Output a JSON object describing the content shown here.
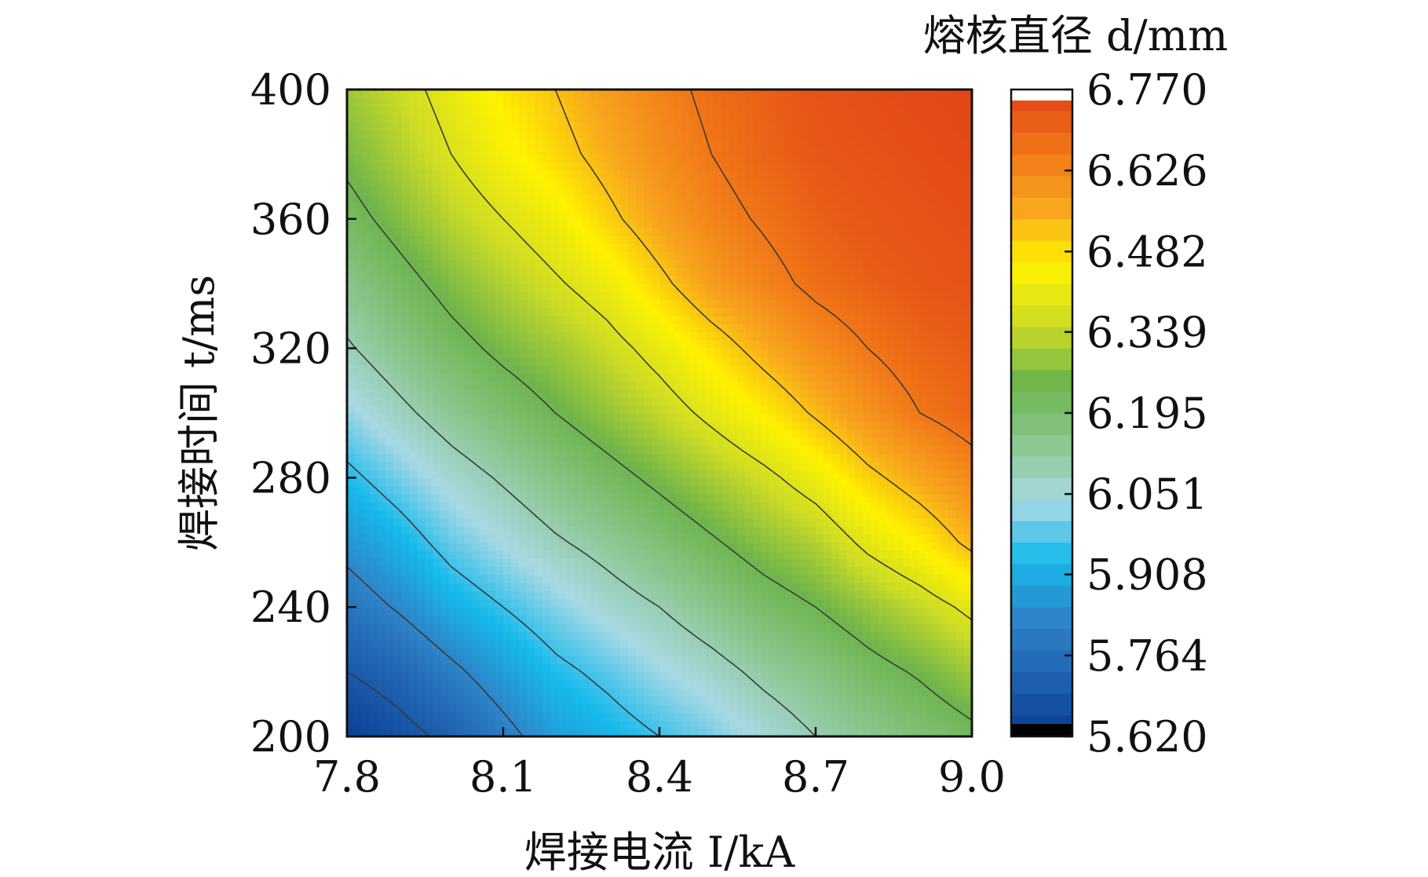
{
  "chart_data": {
    "type": "heatmap",
    "title": "",
    "xlabel": "焊接电流 I/kA",
    "ylabel": "焊接时间 t/ms",
    "xlim": [
      7.8,
      9.0
    ],
    "ylim": [
      200,
      400
    ],
    "x_ticks": [
      "7.8",
      "8.1",
      "8.4",
      "8.7",
      "9.0"
    ],
    "y_ticks": [
      "200",
      "240",
      "280",
      "320",
      "360",
      "400"
    ],
    "colorbar": {
      "title": "熔核直径 d/mm",
      "range": [
        5.62,
        6.77
      ],
      "tick_labels": [
        "6.770",
        "6.626",
        "6.482",
        "6.339",
        "6.195",
        "6.051",
        "5.908",
        "5.764",
        "5.620"
      ],
      "tick_values": [
        6.77,
        6.626,
        6.482,
        6.339,
        6.195,
        6.051,
        5.908,
        5.764,
        5.62
      ],
      "colors": [
        "#0a3f94",
        "#1f62b0",
        "#2f84c8",
        "#16b9ec",
        "#a9d9e4",
        "#8bc68e",
        "#6db44c",
        "#cddc25",
        "#fff200",
        "#f8a51e",
        "#f07417",
        "#e24617"
      ]
    },
    "contour_levels": [
      5.7,
      5.83,
      5.96,
      6.1,
      6.24,
      6.38,
      6.52,
      6.66
    ],
    "x": [
      7.8,
      7.9,
      8.0,
      8.1,
      8.2,
      8.3,
      8.4,
      8.5,
      8.6,
      8.7,
      8.8,
      8.9,
      9.0
    ],
    "y": [
      200,
      220,
      240,
      260,
      280,
      300,
      320,
      340,
      360,
      380,
      400
    ],
    "z": [
      [
        5.62,
        5.67,
        5.72,
        5.8,
        5.88,
        5.92,
        5.96,
        6.0,
        6.05,
        6.1,
        6.14,
        6.18,
        6.22
      ],
      [
        5.7,
        5.74,
        5.81,
        5.88,
        5.94,
        5.98,
        6.03,
        6.07,
        6.12,
        6.16,
        6.21,
        6.25,
        6.3
      ],
      [
        5.78,
        5.84,
        5.91,
        5.96,
        6.01,
        6.06,
        6.1,
        6.15,
        6.2,
        6.24,
        6.29,
        6.34,
        6.4
      ],
      [
        5.86,
        5.92,
        5.99,
        6.04,
        6.09,
        6.13,
        6.18,
        6.23,
        6.28,
        6.32,
        6.4,
        6.46,
        6.54
      ],
      [
        5.94,
        6.0,
        6.06,
        6.11,
        6.16,
        6.21,
        6.26,
        6.31,
        6.36,
        6.42,
        6.5,
        6.56,
        6.62
      ],
      [
        6.02,
        6.08,
        6.14,
        6.19,
        6.24,
        6.29,
        6.34,
        6.4,
        6.46,
        6.53,
        6.6,
        6.66,
        6.7
      ],
      [
        6.09,
        6.15,
        6.21,
        6.26,
        6.3,
        6.35,
        6.41,
        6.48,
        6.55,
        6.61,
        6.66,
        6.7,
        6.72
      ],
      [
        6.15,
        6.21,
        6.27,
        6.32,
        6.37,
        6.42,
        6.5,
        6.58,
        6.63,
        6.68,
        6.71,
        6.73,
        6.74
      ],
      [
        6.21,
        6.27,
        6.33,
        6.38,
        6.43,
        6.5,
        6.57,
        6.63,
        6.67,
        6.71,
        6.73,
        6.74,
        6.75
      ],
      [
        6.26,
        6.32,
        6.38,
        6.44,
        6.49,
        6.55,
        6.61,
        6.66,
        6.7,
        6.73,
        6.74,
        6.75,
        6.76
      ],
      [
        6.3,
        6.35,
        6.41,
        6.47,
        6.52,
        6.58,
        6.63,
        6.68,
        6.71,
        6.74,
        6.75,
        6.76,
        6.77
      ]
    ]
  }
}
